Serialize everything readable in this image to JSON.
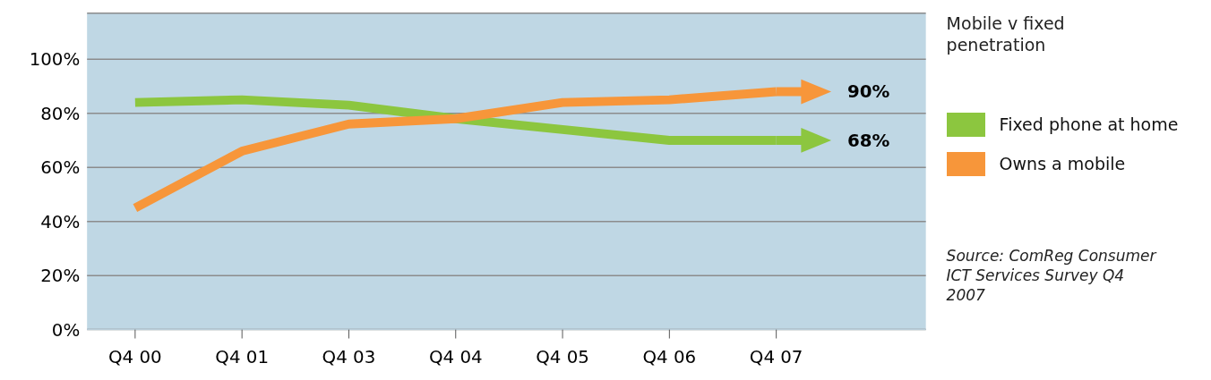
{
  "chart_data": {
    "type": "line",
    "title": "Mobile v fixed penetration",
    "categories": [
      "Q4 00",
      "Q4 01",
      "Q4 03",
      "Q4 04",
      "Q4 05",
      "Q4 06",
      "Q4 07"
    ],
    "series": [
      {
        "name": "Fixed phone at home",
        "color": "#8cc63f",
        "values": [
          84,
          85,
          83,
          78,
          74,
          70,
          70
        ]
      },
      {
        "name": "Owns a mobile",
        "color": "#f7963a",
        "values": [
          45,
          66,
          76,
          78,
          84,
          85,
          88
        ]
      }
    ],
    "ylim": [
      0,
      117
    ],
    "yticks": [
      {
        "value": 0,
        "label": "0%"
      },
      {
        "value": 20,
        "label": "20%"
      },
      {
        "value": 40,
        "label": "40%"
      },
      {
        "value": 60,
        "label": "60%"
      },
      {
        "value": 80,
        "label": "80%"
      },
      {
        "value": 100,
        "label": "100%"
      }
    ],
    "grid": "y",
    "legend": "right",
    "line_style": "solid",
    "annotations": [
      "68%",
      "90%",
      "Source: ComReg Consumer ICT Services Survey Q4 2007"
    ]
  }
}
